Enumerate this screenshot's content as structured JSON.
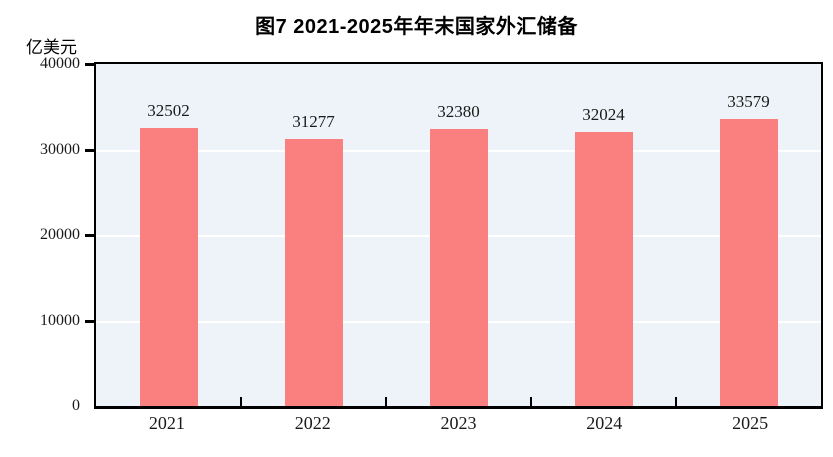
{
  "title": "图7  2021-2025年年末国家外汇储备",
  "unit_label": "亿美元",
  "colors": {
    "bar": "#FA7F7F",
    "plot_background": "#EDF3F8",
    "gridline": "#FFFFFF",
    "axis": "#000000",
    "text": "#1A1A1A"
  },
  "chart_data": {
    "type": "bar",
    "title": "图7  2021-2025年年末国家外汇储备",
    "categories": [
      "2021",
      "2022",
      "2023",
      "2024",
      "2025"
    ],
    "values": [
      32502,
      31277,
      32380,
      32024,
      33579
    ],
    "data_labels": [
      "32502",
      "31277",
      "32380",
      "32024",
      "33579"
    ],
    "xlabel": "",
    "ylabel": "亿美元",
    "ylim": [
      0,
      40000
    ],
    "yticks": [
      0,
      10000,
      20000,
      30000,
      40000
    ],
    "grid": true,
    "legend": false
  }
}
